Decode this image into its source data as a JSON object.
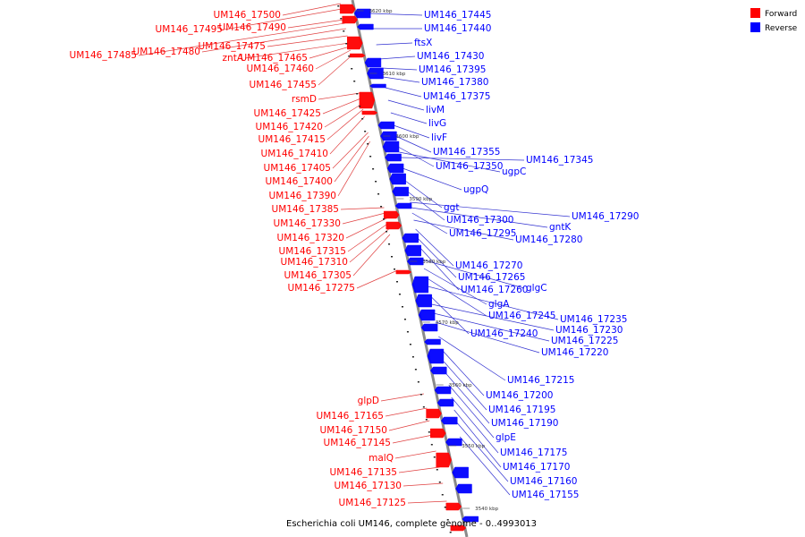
{
  "caption": "Escherichia coli UM146, complete genome - 0..4993013",
  "colors": {
    "forward": "#ff0000",
    "reverse": "#0000ff",
    "axis": "#888888",
    "forward_line": "#e04040",
    "reverse_line": "#3030d0"
  },
  "legend": [
    {
      "label": "Forward",
      "color": "#ff0000"
    },
    {
      "label": "Reverse",
      "color": "#0000ff"
    }
  ],
  "ticks": [
    "3620 kbp",
    "3610 kbp",
    "3600 kbp",
    "3590 kbp",
    "3580 kbp",
    "3570 kbp",
    "3560 kbp",
    "3550 kbp",
    "3540 kbp"
  ],
  "forward_genes": [
    "UM146_17500",
    "UM146_17495",
    "UM146_17490",
    "UM146_17485",
    "UM146_17480",
    "UM146_17475",
    "zntA",
    "UM146_17465",
    "UM146_17460",
    "UM146_17455",
    "rsmD",
    "UM146_17425",
    "UM146_17420",
    "UM146_17415",
    "UM146_17410",
    "UM146_17405",
    "UM146_17400",
    "UM146_17390",
    "UM146_17385",
    "UM146_17330",
    "UM146_17320",
    "UM146_17315",
    "UM146_17310",
    "UM146_17305",
    "UM146_17275",
    "glpD",
    "UM146_17165",
    "UM146_17150",
    "UM146_17145",
    "malQ",
    "UM146_17135",
    "UM146_17130",
    "UM146_17125"
  ],
  "reverse_genes": [
    "UM146_17445",
    "UM146_17440",
    "ftsX",
    "UM146_17430",
    "UM146_17395",
    "UM146_17380",
    "UM146_17375",
    "livM",
    "livG",
    "livF",
    "UM146_17355",
    "UM146_17350",
    "ugpC",
    "UM146_17345",
    "ugpQ",
    "ggt",
    "UM146_17300",
    "UM146_17290",
    "gntK",
    "UM146_17295",
    "UM146_17280",
    "UM146_17270",
    "UM146_17265",
    "UM146_17260",
    "glgC",
    "glgA",
    "UM146_17245",
    "UM146_17235",
    "UM146_17240",
    "UM146_17230",
    "UM146_17225",
    "UM146_17220",
    "UM146_17215",
    "UM146_17200",
    "UM146_17195",
    "UM146_17190",
    "glpE",
    "UM146_17175",
    "UM146_17170",
    "UM146_17160",
    "UM146_17155"
  ]
}
